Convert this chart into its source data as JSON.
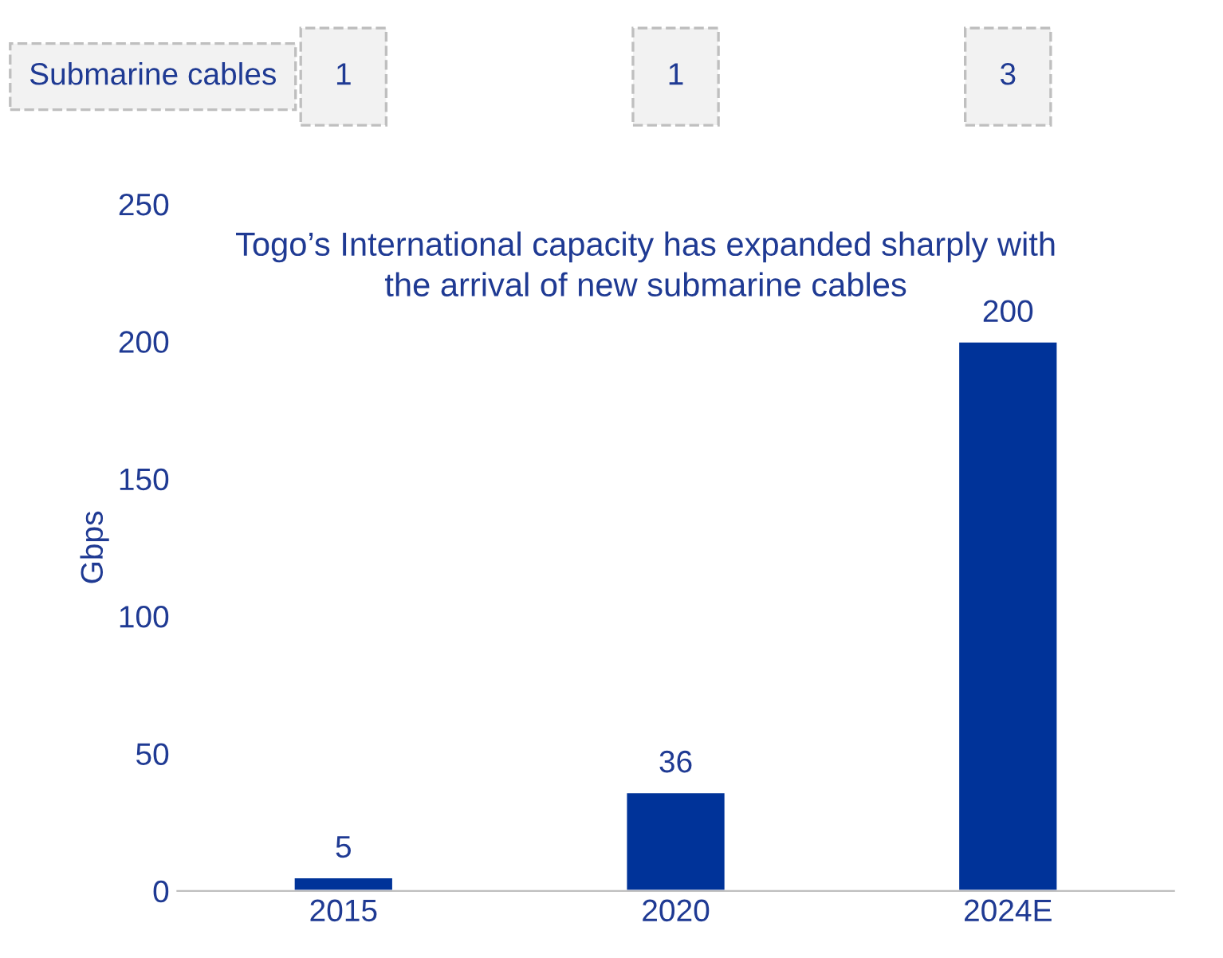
{
  "chart_data": {
    "type": "bar",
    "ylabel": "Gbps",
    "categories": [
      "2015",
      "2020",
      "2024E"
    ],
    "values": [
      5,
      36,
      200
    ],
    "color": "#003399",
    "ylim": [
      0,
      250
    ],
    "yticks": [
      0,
      50,
      100,
      150,
      200,
      250
    ],
    "grid": false,
    "data_labels": true,
    "annotations": [
      "Submarine cables",
      "1",
      "1",
      "3",
      "Togo’s International capacity has expanded sharply with the arrival of new submarine cables"
    ]
  }
}
